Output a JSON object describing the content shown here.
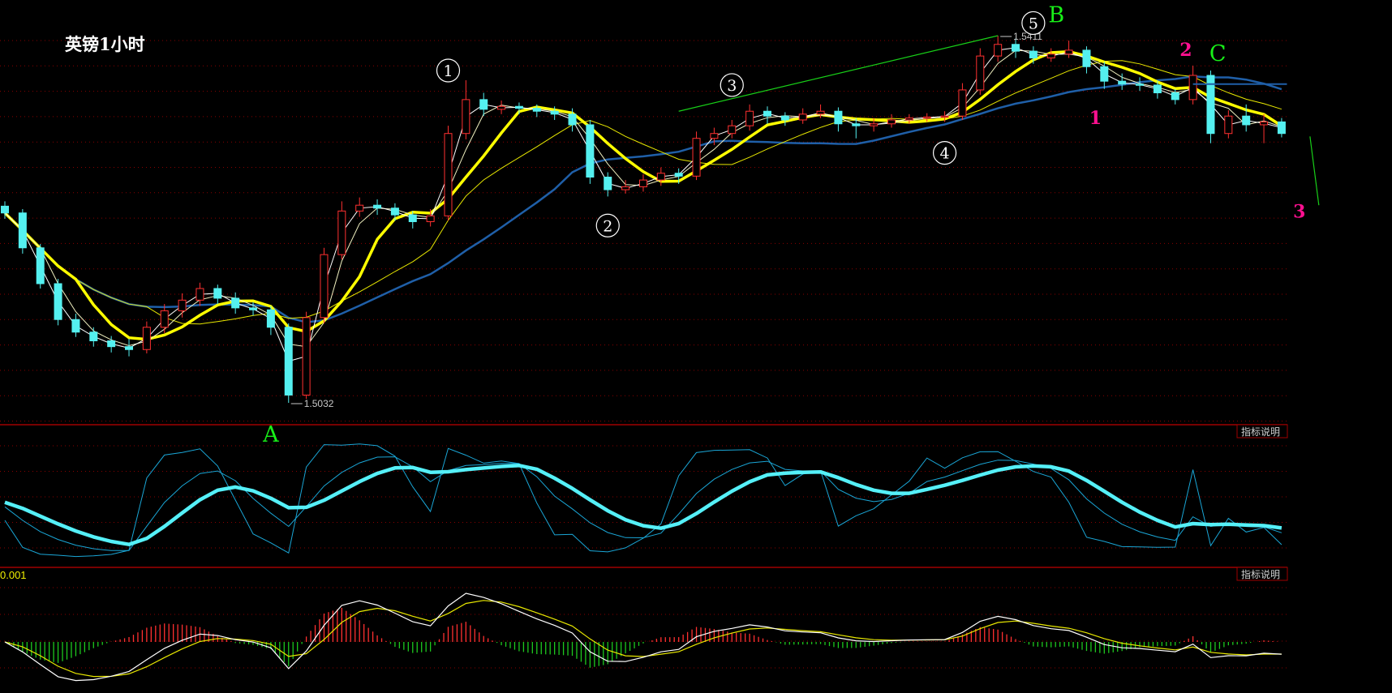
{
  "title": "英镑1小时",
  "indicator_button_label": "指标说明",
  "macd_scale_label": "0.001",
  "colors": {
    "background": "#000000",
    "grid": "#8a0000",
    "up_candle": "#ff3030",
    "down_candle": "#54f0f0",
    "ma_thick": "#ffff00",
    "ma_long": "#1f5fa8",
    "oscillator_main": "#55f0f8",
    "oscillator_thin": "#1aa6d6",
    "macd_positive": "#ff3030",
    "macd_negative": "#1ec81e",
    "wave_letters": "#18f018",
    "sub_wave_numbers": "#ff1090"
  },
  "chart_data": {
    "type": "candlestick",
    "title": "英镑1小时",
    "price_range": [
      1.5032,
      1.5411
    ],
    "grid": true,
    "candles": [
      [
        1.5235,
        1.524,
        1.5222,
        1.5228
      ],
      [
        1.5228,
        1.5232,
        1.5186,
        1.5192
      ],
      [
        1.5192,
        1.5196,
        1.515,
        1.5155
      ],
      [
        1.5155,
        1.516,
        1.5112,
        1.5118
      ],
      [
        1.5118,
        1.5124,
        1.51,
        1.5105
      ],
      [
        1.5105,
        1.511,
        1.509,
        1.5096
      ],
      [
        1.5096,
        1.5101,
        1.5084,
        1.509
      ],
      [
        1.509,
        1.5098,
        1.508,
        1.5087
      ],
      [
        1.5087,
        1.5116,
        1.5083,
        1.511
      ],
      [
        1.511,
        1.5134,
        1.5104,
        1.5127
      ],
      [
        1.5127,
        1.5145,
        1.512,
        1.5138
      ],
      [
        1.5138,
        1.5156,
        1.5132,
        1.515
      ],
      [
        1.515,
        1.5154,
        1.5134,
        1.514
      ],
      [
        1.514,
        1.5146,
        1.5124,
        1.513
      ],
      [
        1.513,
        1.5136,
        1.5122,
        1.5128
      ],
      [
        1.5128,
        1.5132,
        1.5102,
        1.511
      ],
      [
        1.511,
        1.5114,
        1.5032,
        1.504
      ],
      [
        1.504,
        1.5126,
        1.5036,
        1.512
      ],
      [
        1.512,
        1.5192,
        1.5114,
        1.5185
      ],
      [
        1.5185,
        1.524,
        1.518,
        1.523
      ],
      [
        1.523,
        1.5244,
        1.5224,
        1.5236
      ],
      [
        1.5236,
        1.5242,
        1.5226,
        1.5233
      ],
      [
        1.5233,
        1.5238,
        1.522,
        1.5226
      ],
      [
        1.5226,
        1.523,
        1.5212,
        1.5219
      ],
      [
        1.5219,
        1.5232,
        1.5214,
        1.5225
      ],
      [
        1.5225,
        1.5318,
        1.522,
        1.531
      ],
      [
        1.531,
        1.5365,
        1.5304,
        1.5345
      ],
      [
        1.5345,
        1.5352,
        1.5328,
        1.5335
      ],
      [
        1.5335,
        1.5344,
        1.533,
        1.5338
      ],
      [
        1.5338,
        1.5342,
        1.533,
        1.5336
      ],
      [
        1.5336,
        1.534,
        1.5327,
        1.5333
      ],
      [
        1.5333,
        1.5338,
        1.5324,
        1.533
      ],
      [
        1.533,
        1.5336,
        1.5312,
        1.5319
      ],
      [
        1.5319,
        1.5324,
        1.5258,
        1.5265
      ],
      [
        1.5265,
        1.527,
        1.5245,
        1.5252
      ],
      [
        1.5252,
        1.5262,
        1.5248,
        1.5255
      ],
      [
        1.5255,
        1.5268,
        1.525,
        1.5262
      ],
      [
        1.5262,
        1.5275,
        1.5256,
        1.5269
      ],
      [
        1.5269,
        1.5274,
        1.5258,
        1.5266
      ],
      [
        1.5266,
        1.5312,
        1.5262,
        1.5305
      ],
      [
        1.5305,
        1.5316,
        1.5298,
        1.531
      ],
      [
        1.531,
        1.5324,
        1.5305,
        1.5318
      ],
      [
        1.5318,
        1.534,
        1.5313,
        1.5333
      ],
      [
        1.5333,
        1.5338,
        1.532,
        1.5328
      ],
      [
        1.5328,
        1.5332,
        1.5318,
        1.5324
      ],
      [
        1.5324,
        1.5336,
        1.532,
        1.533
      ],
      [
        1.533,
        1.534,
        1.5326,
        1.5333
      ],
      [
        1.5333,
        1.5337,
        1.5312,
        1.532
      ],
      [
        1.532,
        1.5326,
        1.5305,
        1.5318
      ],
      [
        1.5318,
        1.5326,
        1.5312,
        1.532
      ],
      [
        1.532,
        1.533,
        1.5316,
        1.5324
      ],
      [
        1.5324,
        1.533,
        1.532,
        1.5326
      ],
      [
        1.5326,
        1.5331,
        1.5322,
        1.5327
      ],
      [
        1.5327,
        1.5333,
        1.5322,
        1.5328
      ],
      [
        1.5328,
        1.5362,
        1.5324,
        1.5355
      ],
      [
        1.5355,
        1.5398,
        1.535,
        1.539
      ],
      [
        1.539,
        1.5411,
        1.5384,
        1.5402
      ],
      [
        1.5402,
        1.5408,
        1.5388,
        1.5395
      ],
      [
        1.5395,
        1.54,
        1.5382,
        1.5388
      ],
      [
        1.5388,
        1.5398,
        1.5384,
        1.5392
      ],
      [
        1.5392,
        1.5406,
        1.5388,
        1.5396
      ],
      [
        1.5396,
        1.54,
        1.5372,
        1.5379
      ],
      [
        1.5379,
        1.5384,
        1.5356,
        1.5364
      ],
      [
        1.5364,
        1.5372,
        1.5355,
        1.5361
      ],
      [
        1.5361,
        1.5368,
        1.5354,
        1.536
      ],
      [
        1.536,
        1.5364,
        1.5346,
        1.5352
      ],
      [
        1.5352,
        1.5356,
        1.534,
        1.5345
      ],
      [
        1.5345,
        1.538,
        1.534,
        1.537
      ],
      [
        1.537,
        1.5375,
        1.53,
        1.531
      ],
      [
        1.531,
        1.5334,
        1.5305,
        1.5328
      ],
      [
        1.5328,
        1.534,
        1.5312,
        1.5319
      ],
      [
        1.5319,
        1.533,
        1.53,
        1.5322
      ],
      [
        1.5322,
        1.5326,
        1.5306,
        1.531
      ]
    ],
    "price_labels": [
      {
        "text": "1.5411",
        "candle": 56,
        "price": 1.5411
      },
      {
        "text": "1.5032",
        "candle": 16,
        "price": 1.5032
      }
    ],
    "wave_numbers": [
      {
        "text": "1",
        "candle": 25,
        "price": 1.5375
      },
      {
        "text": "2",
        "candle": 34,
        "price": 1.5215
      },
      {
        "text": "3",
        "candle": 41,
        "price": 1.536
      },
      {
        "text": "4",
        "candle": 53,
        "price": 1.529
      },
      {
        "text": "5",
        "candle": 58,
        "price": 1.5424
      }
    ],
    "wave_letters": [
      {
        "text": "A",
        "panel": "oscillator-top",
        "candle": 15
      },
      {
        "text": "B",
        "candle": 59.3,
        "price": 1.5425
      },
      {
        "text": "C",
        "candle": 68.4,
        "price": 1.5385
      }
    ],
    "sub_wave_numbers": [
      {
        "text": "1",
        "candle": 61.5,
        "price": 1.532
      },
      {
        "text": "2",
        "candle": 66.6,
        "price": 1.539
      },
      {
        "text": "3",
        "candle": 73,
        "price": 1.5223
      }
    ],
    "trendlines": [
      {
        "from": [
          38,
          1.5333
        ],
        "to": [
          56,
          1.5411
        ],
        "color": "#18d018"
      },
      {
        "from": [
          73.6,
          1.5307
        ],
        "to": [
          74.1,
          1.5236
        ],
        "color": "#18d018"
      }
    ],
    "horizontal_levels": [
      {
        "price": 1.5361,
        "from_candle": 67,
        "to_candle": 72.3,
        "color": "#1f5fa8"
      }
    ]
  }
}
